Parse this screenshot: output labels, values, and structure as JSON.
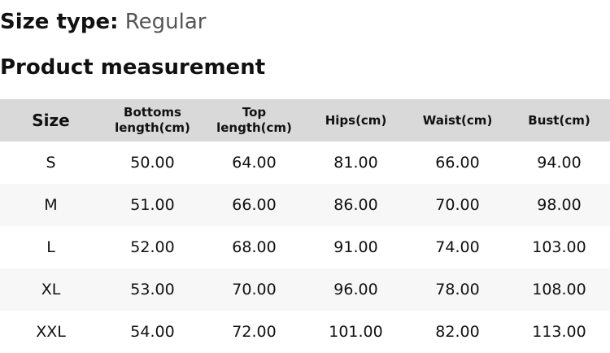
{
  "size_type": {
    "label": "Size type:",
    "value": "Regular"
  },
  "title": "Product measurement",
  "headers": [
    "Size",
    "Bottoms length(cm)",
    "Top length(cm)",
    "Hips(cm)",
    "Waist(cm)",
    "Bust(cm)"
  ],
  "rows": [
    [
      "S",
      "50.00",
      "64.00",
      "81.00",
      "66.00",
      "94.00"
    ],
    [
      "M",
      "51.00",
      "66.00",
      "86.00",
      "70.00",
      "98.00"
    ],
    [
      "L",
      "52.00",
      "68.00",
      "91.00",
      "74.00",
      "103.00"
    ],
    [
      "XL",
      "53.00",
      "70.00",
      "96.00",
      "78.00",
      "108.00"
    ],
    [
      "XXL",
      "54.00",
      "72.00",
      "101.00",
      "82.00",
      "113.00"
    ]
  ]
}
